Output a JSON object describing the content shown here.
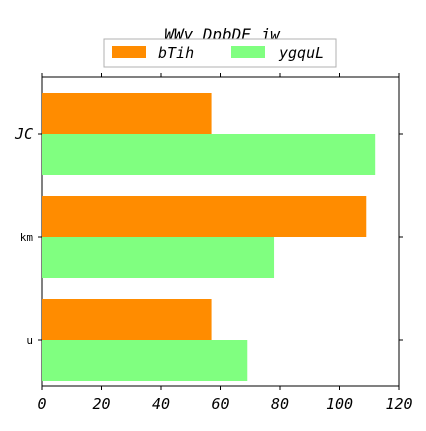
{
  "chart_data": {
    "type": "bar",
    "orientation": "horizontal",
    "title": "WWy DpbDE jw",
    "xlabel": "",
    "ylabel": "",
    "categories": [
      "JC",
      "km",
      "u"
    ],
    "series": [
      {
        "name": "bTih",
        "color": "#ff8c00",
        "values": [
          57,
          109,
          57
        ]
      },
      {
        "name": "ygquL",
        "color": "#80ff80",
        "values": [
          112,
          78,
          69
        ]
      }
    ],
    "xlim": [
      0,
      120
    ],
    "xticks": [
      0,
      20,
      40,
      60,
      80,
      100,
      120
    ],
    "grid": false,
    "legend_position": "top-center"
  }
}
